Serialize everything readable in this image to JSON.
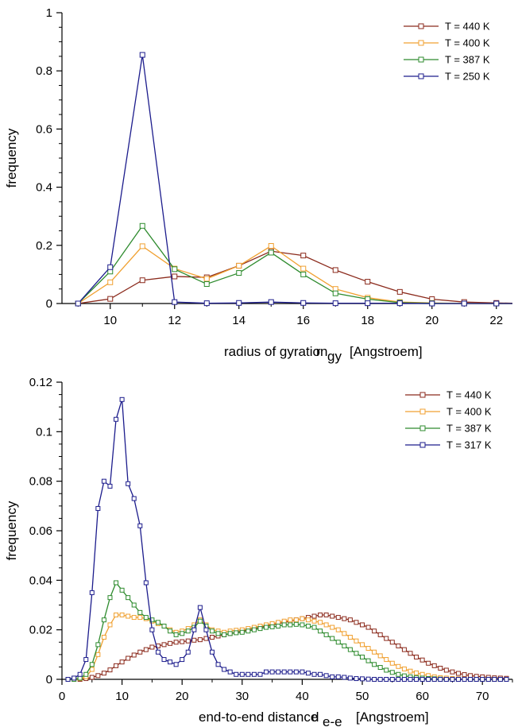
{
  "chart_data": [
    {
      "type": "line",
      "xlabel_main": "radius of gyration",
      "xlabel_symbol": "r",
      "xlabel_subscript": "gy",
      "xlabel_unit": "[Angstroem]",
      "ylabel": "frequency",
      "xlim": [
        8.5,
        22.5
      ],
      "ylim": [
        0,
        1
      ],
      "xticks": [
        10,
        12,
        14,
        16,
        18,
        20,
        22
      ],
      "yticks": [
        0,
        0.2,
        0.4,
        0.6,
        0.8,
        1
      ],
      "ytick_labels": [
        "0",
        "0.2",
        "0.4",
        "0.6",
        "0.8",
        "1"
      ],
      "legend_position": "top-right",
      "series": [
        {
          "name": "T = 440 K",
          "color": "#8b2a1c",
          "x": [
            9,
            10,
            11,
            12,
            13,
            14,
            15,
            16,
            17,
            18,
            19,
            20,
            21,
            22,
            23
          ],
          "y": [
            0.0,
            0.016,
            0.08,
            0.093,
            0.09,
            0.13,
            0.18,
            0.165,
            0.115,
            0.075,
            0.04,
            0.015,
            0.005,
            0.002,
            0.0
          ]
        },
        {
          "name": "T = 400 K",
          "color": "#f0a030",
          "x": [
            9,
            10,
            11,
            12,
            13,
            14,
            15,
            16,
            17,
            18,
            19,
            20,
            21,
            22,
            23
          ],
          "y": [
            0.0,
            0.073,
            0.197,
            0.12,
            0.085,
            0.13,
            0.198,
            0.12,
            0.05,
            0.02,
            0.005,
            0.002,
            0.0,
            0.0,
            0.0
          ]
        },
        {
          "name": "T = 387 K",
          "color": "#2e8b2e",
          "x": [
            9,
            10,
            11,
            12,
            13,
            14,
            15,
            16,
            17,
            18,
            19,
            20,
            21,
            22,
            23
          ],
          "y": [
            0.0,
            0.11,
            0.267,
            0.118,
            0.067,
            0.105,
            0.175,
            0.1,
            0.035,
            0.015,
            0.003,
            0.001,
            0.0,
            0.0,
            0.0
          ]
        },
        {
          "name": "T = 250 K",
          "color": "#1c1c8c",
          "x": [
            9,
            10,
            11,
            12,
            13,
            14,
            15,
            16,
            17,
            18,
            19,
            20,
            21,
            22,
            23
          ],
          "y": [
            0.0,
            0.125,
            0.855,
            0.005,
            0.001,
            0.002,
            0.005,
            0.002,
            0.001,
            0.001,
            0.001,
            0.0,
            0.0,
            0.0,
            0.0
          ]
        }
      ]
    },
    {
      "type": "line",
      "xlabel_main": "end-to-end distance",
      "xlabel_symbol": "d",
      "xlabel_subscript": "e-e",
      "xlabel_unit": "[Angstroem]",
      "ylabel": "frequency",
      "xlim": [
        0,
        75
      ],
      "ylim": [
        0,
        0.12
      ],
      "xticks": [
        0,
        10,
        20,
        30,
        40,
        50,
        60,
        70
      ],
      "yticks": [
        0,
        0.02,
        0.04,
        0.06,
        0.08,
        0.1,
        0.12
      ],
      "ytick_labels": [
        "0",
        "0.02",
        "0.04",
        "0.06",
        "0.08",
        "0.1",
        "0.12"
      ],
      "legend_position": "top-right",
      "series": [
        {
          "name": "T = 440 K",
          "color": "#8b2a1c",
          "x": [
            1,
            2,
            3,
            4,
            5,
            6,
            7,
            8,
            9,
            10,
            11,
            12,
            13,
            14,
            15,
            16,
            17,
            18,
            19,
            20,
            21,
            22,
            23,
            24,
            25,
            26,
            27,
            28,
            29,
            30,
            31,
            32,
            33,
            34,
            35,
            36,
            37,
            38,
            39,
            40,
            41,
            42,
            43,
            44,
            45,
            46,
            47,
            48,
            49,
            50,
            51,
            52,
            53,
            54,
            55,
            56,
            57,
            58,
            59,
            60,
            61,
            62,
            63,
            64,
            65,
            66,
            67,
            68,
            69,
            70,
            71,
            72,
            73,
            74
          ],
          "y": [
            0.0,
            0.0,
            0.0,
            0.0003,
            0.0008,
            0.0015,
            0.0025,
            0.0038,
            0.0055,
            0.007,
            0.0085,
            0.0098,
            0.011,
            0.012,
            0.013,
            0.0135,
            0.014,
            0.0145,
            0.015,
            0.0152,
            0.0155,
            0.0158,
            0.016,
            0.0165,
            0.017,
            0.0175,
            0.018,
            0.0185,
            0.019,
            0.0195,
            0.02,
            0.0205,
            0.021,
            0.0215,
            0.022,
            0.0225,
            0.023,
            0.0235,
            0.024,
            0.0245,
            0.025,
            0.0255,
            0.026,
            0.026,
            0.0255,
            0.025,
            0.0245,
            0.024,
            0.023,
            0.022,
            0.021,
            0.0195,
            0.018,
            0.0165,
            0.015,
            0.0135,
            0.012,
            0.0105,
            0.009,
            0.0078,
            0.0065,
            0.0055,
            0.0045,
            0.0037,
            0.003,
            0.0024,
            0.0019,
            0.0015,
            0.0012,
            0.001,
            0.0008,
            0.0006,
            0.0005,
            0.0004
          ]
        },
        {
          "name": "T = 400 K",
          "color": "#f0a030",
          "x": [
            1,
            2,
            3,
            4,
            5,
            6,
            7,
            8,
            9,
            10,
            11,
            12,
            13,
            14,
            15,
            16,
            17,
            18,
            19,
            20,
            21,
            22,
            23,
            24,
            25,
            26,
            27,
            28,
            29,
            30,
            31,
            32,
            33,
            34,
            35,
            36,
            37,
            38,
            39,
            40,
            41,
            42,
            43,
            44,
            45,
            46,
            47,
            48,
            49,
            50,
            51,
            52,
            53,
            54,
            55,
            56,
            57,
            58,
            59,
            60,
            61,
            62,
            63,
            64,
            65,
            66,
            67,
            68,
            69,
            70,
            71,
            72,
            73,
            74
          ],
          "y": [
            0.0,
            0.0,
            0.0003,
            0.001,
            0.004,
            0.01,
            0.017,
            0.022,
            0.026,
            0.026,
            0.0255,
            0.025,
            0.025,
            0.0245,
            0.0235,
            0.0225,
            0.0215,
            0.02,
            0.019,
            0.0195,
            0.0205,
            0.022,
            0.024,
            0.022,
            0.02,
            0.0195,
            0.019,
            0.0195,
            0.0198,
            0.02,
            0.0205,
            0.021,
            0.0215,
            0.022,
            0.0225,
            0.023,
            0.0235,
            0.024,
            0.024,
            0.0245,
            0.024,
            0.0235,
            0.023,
            0.022,
            0.021,
            0.02,
            0.0185,
            0.017,
            0.0155,
            0.014,
            0.0125,
            0.011,
            0.0095,
            0.008,
            0.0065,
            0.0052,
            0.0042,
            0.0033,
            0.0026,
            0.002,
            0.0015,
            0.001,
            0.0007,
            0.0005,
            0.0003,
            0.0002,
            0.0001,
            0.0,
            0.0,
            0.0,
            0.0,
            0.0,
            0.0,
            0.0
          ]
        },
        {
          "name": "T = 387 K",
          "color": "#2e8b2e",
          "x": [
            1,
            2,
            3,
            4,
            5,
            6,
            7,
            8,
            9,
            10,
            11,
            12,
            13,
            14,
            15,
            16,
            17,
            18,
            19,
            20,
            21,
            22,
            23,
            24,
            25,
            26,
            27,
            28,
            29,
            30,
            31,
            32,
            33,
            34,
            35,
            36,
            37,
            38,
            39,
            40,
            41,
            42,
            43,
            44,
            45,
            46,
            47,
            48,
            49,
            50,
            51,
            52,
            53,
            54,
            55,
            56,
            57,
            58,
            59,
            60,
            61,
            62,
            63,
            64,
            65,
            66,
            67,
            68,
            69,
            70,
            71,
            72,
            73,
            74
          ],
          "y": [
            0.0,
            0.0,
            0.0005,
            0.002,
            0.006,
            0.014,
            0.024,
            0.033,
            0.039,
            0.036,
            0.033,
            0.03,
            0.027,
            0.025,
            0.024,
            0.023,
            0.0215,
            0.0195,
            0.018,
            0.0185,
            0.0195,
            0.021,
            0.0235,
            0.0215,
            0.0195,
            0.0185,
            0.018,
            0.0185,
            0.0188,
            0.019,
            0.0195,
            0.02,
            0.0205,
            0.021,
            0.0212,
            0.0215,
            0.022,
            0.022,
            0.0222,
            0.022,
            0.0215,
            0.021,
            0.0195,
            0.018,
            0.0165,
            0.015,
            0.0135,
            0.012,
            0.0105,
            0.009,
            0.0075,
            0.006,
            0.0048,
            0.0037,
            0.0028,
            0.002,
            0.0014,
            0.001,
            0.0007,
            0.0005,
            0.0003,
            0.0002,
            0.0001,
            0.0,
            0.0,
            0.0,
            0.0,
            0.0,
            0.0,
            0.0,
            0.0,
            0.0,
            0.0,
            0.0
          ]
        },
        {
          "name": "T = 317 K",
          "color": "#1c1c8c",
          "x": [
            1,
            2,
            3,
            4,
            5,
            6,
            7,
            8,
            9,
            10,
            11,
            12,
            13,
            14,
            15,
            16,
            17,
            18,
            19,
            20,
            21,
            22,
            23,
            24,
            25,
            26,
            27,
            28,
            29,
            30,
            31,
            32,
            33,
            34,
            35,
            36,
            37,
            38,
            39,
            40,
            41,
            42,
            43,
            44,
            45,
            46,
            47,
            48,
            49,
            50,
            51,
            52,
            53,
            54,
            55,
            56,
            57,
            58,
            59,
            60,
            61,
            62,
            63,
            64,
            65,
            66,
            67,
            68,
            69,
            70,
            71,
            72,
            73,
            74
          ],
          "y": [
            0.0,
            0.0005,
            0.002,
            0.008,
            0.035,
            0.069,
            0.08,
            0.078,
            0.105,
            0.113,
            0.079,
            0.073,
            0.062,
            0.039,
            0.02,
            0.011,
            0.008,
            0.007,
            0.006,
            0.008,
            0.011,
            0.02,
            0.029,
            0.02,
            0.011,
            0.006,
            0.004,
            0.003,
            0.002,
            0.002,
            0.002,
            0.002,
            0.002,
            0.003,
            0.003,
            0.003,
            0.003,
            0.003,
            0.003,
            0.003,
            0.0025,
            0.002,
            0.002,
            0.0015,
            0.001,
            0.001,
            0.0008,
            0.0005,
            0.0003,
            0.0002,
            0.0001,
            0.0,
            0.0,
            0.0,
            0.0,
            0.0,
            0.0,
            0.0,
            0.0,
            0.0,
            0.0,
            0.0,
            0.0,
            0.0,
            0.0,
            0.0,
            0.0,
            0.0,
            0.0,
            0.0,
            0.0,
            0.0,
            0.0,
            0.0
          ]
        }
      ]
    }
  ]
}
